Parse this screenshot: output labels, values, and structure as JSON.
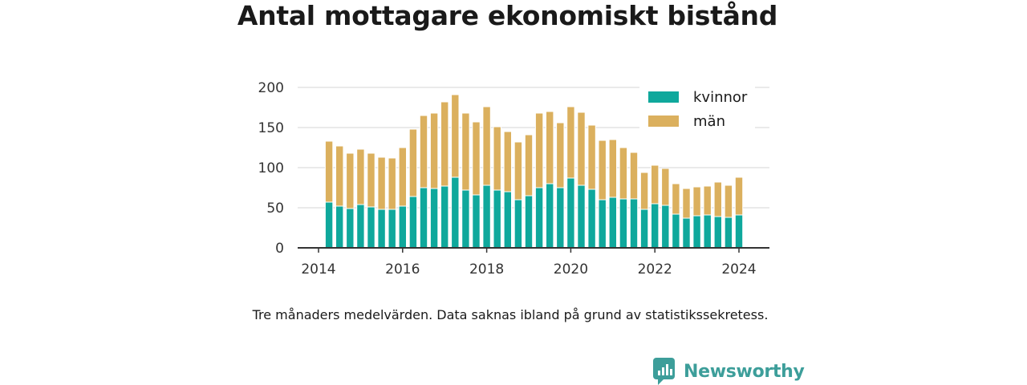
{
  "title": "Antal mottagare ekonomiskt bistånd",
  "caption": "Tre månaders medelvärden. Data saknas ibland på grund av statistikssekretess.",
  "brand": {
    "name": "Newsworthy",
    "icon": "bar-chart-logo-icon",
    "color": "#3d9e9a"
  },
  "chart_data": {
    "type": "bar",
    "stacked": true,
    "title": "Antal mottagare ekonomiskt bistånd",
    "xlabel": "",
    "ylabel": "",
    "ylim": [
      0,
      200
    ],
    "yticks": [
      0,
      50,
      100,
      150,
      200
    ],
    "xticks": [
      "2014",
      "2016",
      "2018",
      "2020",
      "2022",
      "2024"
    ],
    "grid": "horizontal",
    "legend_position": "top-right",
    "categories": [
      "2014-04",
      "2014-07",
      "2014-10",
      "2015-01",
      "2015-04",
      "2015-07",
      "2015-10",
      "2016-01",
      "2016-04",
      "2016-07",
      "2016-10",
      "2017-01",
      "2017-04",
      "2017-07",
      "2017-10",
      "2018-01",
      "2018-04",
      "2018-07",
      "2018-10",
      "2019-01",
      "2019-04",
      "2019-07",
      "2019-10",
      "2020-01",
      "2020-04",
      "2020-07",
      "2020-10",
      "2021-01",
      "2021-04",
      "2021-07",
      "2021-10",
      "2022-01",
      "2022-04",
      "2022-07",
      "2022-10",
      "2023-01",
      "2023-04",
      "2023-07",
      "2023-10",
      "2024-01"
    ],
    "series": [
      {
        "name": "kvinnor",
        "color": "#0fa89c",
        "values": [
          57,
          52,
          49,
          54,
          51,
          48,
          48,
          52,
          64,
          75,
          74,
          77,
          88,
          72,
          66,
          78,
          72,
          70,
          60,
          65,
          75,
          80,
          75,
          87,
          78,
          73,
          60,
          63,
          61,
          61,
          48,
          55,
          53,
          42,
          37,
          40,
          41,
          39,
          38,
          41
        ]
      },
      {
        "name": "män",
        "color": "#dbb05e",
        "values": [
          76,
          75,
          69,
          69,
          67,
          65,
          64,
          73,
          84,
          90,
          94,
          105,
          103,
          96,
          91,
          98,
          79,
          75,
          72,
          76,
          93,
          90,
          81,
          89,
          91,
          80,
          74,
          72,
          64,
          58,
          46,
          48,
          46,
          38,
          37,
          36,
          36,
          43,
          40,
          47
        ]
      }
    ]
  }
}
